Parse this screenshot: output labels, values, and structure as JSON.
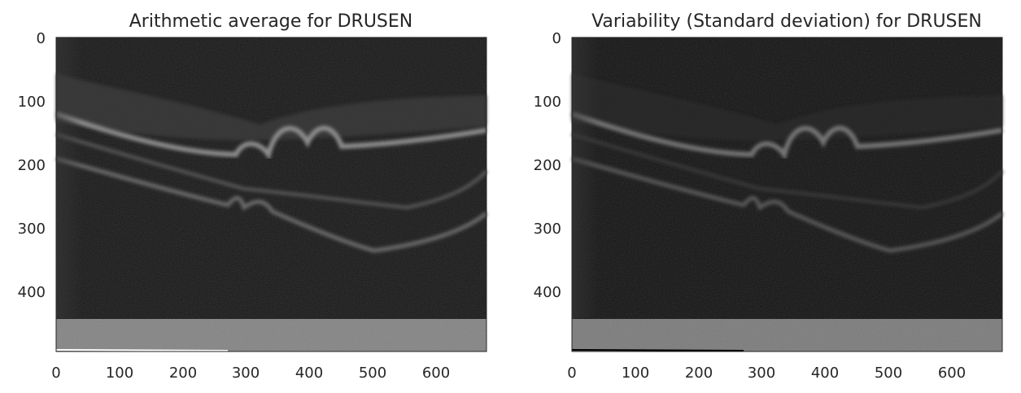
{
  "chart_data": [
    {
      "type": "heatmap",
      "title": "Arithmetic average for DRUSEN",
      "xlabel": "",
      "ylabel": "",
      "x_ticks": [
        0,
        100,
        200,
        300,
        400,
        500,
        600
      ],
      "y_ticks": [
        0,
        100,
        200,
        300,
        400
      ],
      "xlim": [
        0,
        680
      ],
      "ylim": [
        496,
        0
      ],
      "colormap": "gray",
      "grid": false,
      "content": "grayscale OCT retina image with drusen bumps"
    },
    {
      "type": "heatmap",
      "title": "Variability (Standard deviation) for DRUSEN",
      "xlabel": "",
      "ylabel": "",
      "x_ticks": [
        0,
        100,
        200,
        300,
        400,
        500,
        600
      ],
      "y_ticks": [
        0,
        100,
        200,
        300,
        400
      ],
      "xlim": [
        0,
        680
      ],
      "ylim": [
        496,
        0
      ],
      "colormap": "gray",
      "grid": false,
      "content": "grayscale OCT retina image with drusen bumps"
    }
  ],
  "colors": {
    "background": "#ffffff",
    "image_dark": "#141414",
    "band_bright": "#9a9a9a",
    "bottom_band": "#838383",
    "text": "#262626"
  }
}
